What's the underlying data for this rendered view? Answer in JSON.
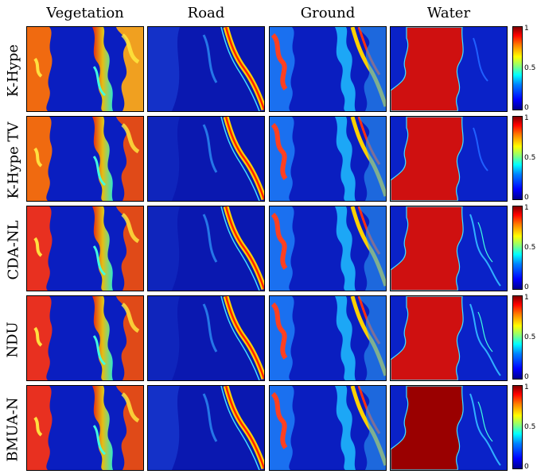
{
  "columns": [
    "Vegetation",
    "Road",
    "Ground",
    "Water"
  ],
  "rows": [
    "K-Hype",
    "K-Hype TV",
    "CDA-NL",
    "NDU",
    "BMUA-N"
  ],
  "colorbar": {
    "ticks": [
      "1",
      "0.5",
      "0"
    ],
    "colormap": "jet"
  },
  "colors": {
    "low": "#0000b4",
    "mid": "#00ffff",
    "high": "#ff0000",
    "frame": "#000000"
  }
}
